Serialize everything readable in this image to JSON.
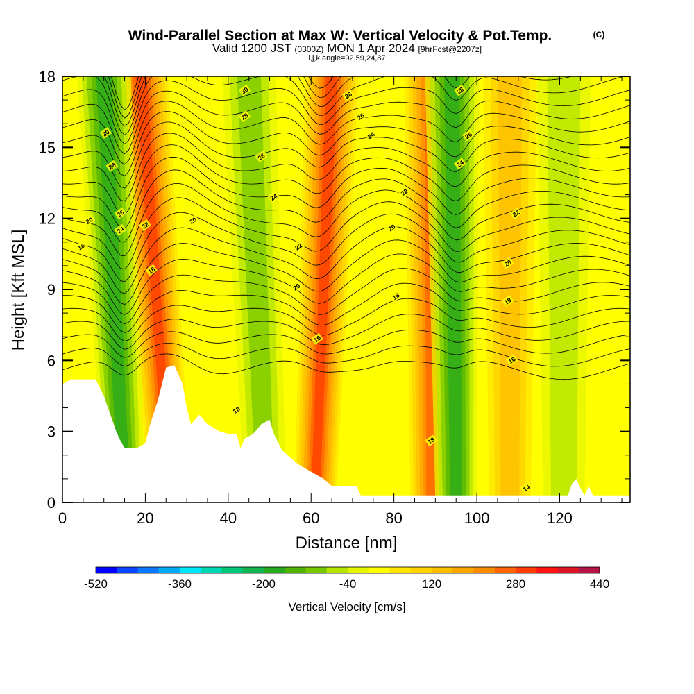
{
  "title": {
    "main": "Wind-Parallel Section at Max W: Vertical Velocity & Pot.Temp.",
    "copyright": "(C)",
    "line2_a": "Valid 1200 JST",
    "line2_b": "(0300Z)",
    "line2_c": "MON 1 Apr 2024",
    "line2_d": "[9hrFcst@2207z]",
    "line3": "i,j,k,angle=92,59,24,87"
  },
  "chart_data": {
    "type": "heatmap",
    "xlabel": "Distance [nm]",
    "ylabel": "Height [Kft MSL]",
    "xlim": [
      0,
      137
    ],
    "ylim": [
      0,
      18
    ],
    "x_ticks": [
      0,
      20,
      40,
      60,
      80,
      100,
      120
    ],
    "y_ticks": [
      0,
      3,
      6,
      9,
      12,
      15,
      18
    ],
    "field": "Vertical Velocity [cm/s]",
    "updraft_bands": [
      {
        "x_top": 19,
        "x_bottom": 26,
        "w_max": 280
      },
      {
        "x_top": 65,
        "x_bottom": 61,
        "w_max": 280
      },
      {
        "x_top": 89,
        "x_bottom": 89,
        "w_max": 250
      },
      {
        "x_top": 108,
        "x_bottom": 108,
        "w_max": 120
      }
    ],
    "downdraft_bands": [
      {
        "x_top": 10,
        "x_bottom": 15,
        "w_min": -200
      },
      {
        "x_top": 45,
        "x_bottom": 49,
        "w_min": -120
      },
      {
        "x_top": 94,
        "x_bottom": 95,
        "w_min": -200
      },
      {
        "x_top": 121,
        "x_bottom": 121,
        "w_min": -80
      }
    ],
    "terrain_profile": [
      [
        0,
        5.0
      ],
      [
        2,
        5.2
      ],
      [
        8,
        5.2
      ],
      [
        10,
        4.5
      ],
      [
        12,
        3.5
      ],
      [
        13,
        3.0
      ],
      [
        14,
        2.6
      ],
      [
        15,
        2.3
      ],
      [
        18,
        2.3
      ],
      [
        20,
        2.5
      ],
      [
        21,
        3.2
      ],
      [
        23,
        4.3
      ],
      [
        25,
        5.7
      ],
      [
        27,
        5.8
      ],
      [
        29,
        5.0
      ],
      [
        30,
        4.0
      ],
      [
        31,
        3.3
      ],
      [
        33,
        3.7
      ],
      [
        35,
        3.3
      ],
      [
        38,
        3.0
      ],
      [
        40,
        2.9
      ],
      [
        42,
        2.9
      ],
      [
        43,
        2.3
      ],
      [
        44,
        2.7
      ],
      [
        46,
        2.9
      ],
      [
        48,
        3.3
      ],
      [
        50,
        3.5
      ],
      [
        51,
        2.9
      ],
      [
        53,
        2.2
      ],
      [
        55,
        1.9
      ],
      [
        57,
        1.6
      ],
      [
        60,
        1.3
      ],
      [
        63,
        1.0
      ],
      [
        65,
        0.7
      ],
      [
        71,
        0.7
      ],
      [
        72,
        0.3
      ],
      [
        122,
        0.3
      ],
      [
        123,
        0.8
      ],
      [
        124,
        1.0
      ],
      [
        125,
        0.6
      ],
      [
        126,
        0.3
      ],
      [
        127,
        0.7
      ],
      [
        128,
        0.3
      ],
      [
        137,
        0.3
      ]
    ],
    "theta_contour_labels": [
      {
        "text": "30",
        "x": 10.5,
        "y": 15.6
      },
      {
        "text": "28",
        "x": 12.0,
        "y": 14.2
      },
      {
        "text": "26",
        "x": 14.0,
        "y": 12.2
      },
      {
        "text": "24",
        "x": 14.0,
        "y": 11.5
      },
      {
        "text": "20",
        "x": 6.5,
        "y": 11.9
      },
      {
        "text": "18",
        "x": 4.5,
        "y": 10.8
      },
      {
        "text": "22",
        "x": 20.0,
        "y": 11.7
      },
      {
        "text": "20",
        "x": 31.5,
        "y": 11.9
      },
      {
        "text": "18",
        "x": 21.5,
        "y": 9.8
      },
      {
        "text": "30",
        "x": 44.0,
        "y": 17.4
      },
      {
        "text": "28",
        "x": 44.0,
        "y": 16.3
      },
      {
        "text": "26",
        "x": 48.0,
        "y": 14.6
      },
      {
        "text": "24",
        "x": 51.0,
        "y": 12.9
      },
      {
        "text": "22",
        "x": 57.0,
        "y": 10.8
      },
      {
        "text": "20",
        "x": 56.5,
        "y": 9.1
      },
      {
        "text": "16",
        "x": 61.5,
        "y": 6.9
      },
      {
        "text": "18",
        "x": 42.0,
        "y": 3.9
      },
      {
        "text": "28",
        "x": 69.0,
        "y": 17.2
      },
      {
        "text": "26",
        "x": 72.0,
        "y": 16.3
      },
      {
        "text": "24",
        "x": 74.5,
        "y": 15.5
      },
      {
        "text": "20",
        "x": 79.5,
        "y": 11.6
      },
      {
        "text": "18",
        "x": 80.5,
        "y": 8.7
      },
      {
        "text": "22",
        "x": 82.5,
        "y": 13.1
      },
      {
        "text": "28",
        "x": 96.0,
        "y": 17.4
      },
      {
        "text": "26",
        "x": 98.0,
        "y": 15.5
      },
      {
        "text": "24",
        "x": 96.0,
        "y": 14.3
      },
      {
        "text": "22",
        "x": 109.5,
        "y": 12.2
      },
      {
        "text": "20",
        "x": 107.5,
        "y": 10.1
      },
      {
        "text": "18",
        "x": 107.5,
        "y": 8.5
      },
      {
        "text": "16",
        "x": 108.5,
        "y": 6.0
      },
      {
        "text": "18",
        "x": 89.0,
        "y": 2.6
      },
      {
        "text": "14",
        "x": 112.0,
        "y": 0.6
      }
    ],
    "colorbar": {
      "title": "Vertical Velocity [cm/s]",
      "min": -520,
      "max": 440,
      "step": 40,
      "tick_labels": [
        "-520",
        "-360",
        "-200",
        "-40",
        "120",
        "280",
        "440"
      ],
      "colors": [
        "#0000ff",
        "#0a46ff",
        "#0a78ff",
        "#00aaff",
        "#00e6ff",
        "#00d8b4",
        "#00c878",
        "#14b450",
        "#28aa1e",
        "#50b400",
        "#78c800",
        "#b4e600",
        "#e6f500",
        "#ffff00",
        "#ffe600",
        "#ffd200",
        "#ffbe00",
        "#ffa500",
        "#ff8c00",
        "#ff6400",
        "#ff3c00",
        "#ff1414",
        "#dc1428",
        "#b41446",
        "#8c1464",
        "#5a0a82"
      ]
    }
  }
}
